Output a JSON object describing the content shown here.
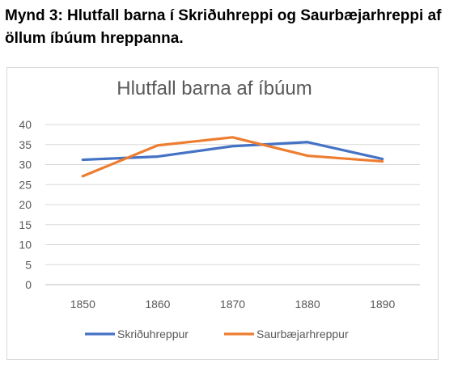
{
  "caption": "Mynd 3: Hlutfall barna í Skriðuhreppi og Saurbæjarhreppi af öllum íbúum hreppanna.",
  "chart_data": {
    "type": "line",
    "title": "Hlutfall barna af íbúum",
    "x": [
      "1850",
      "1860",
      "1870",
      "1880",
      "1890"
    ],
    "ylim": [
      0,
      40
    ],
    "yticks": [
      "0",
      "5",
      "10",
      "15",
      "20",
      "25",
      "30",
      "35",
      "40"
    ],
    "grid": true,
    "legend_position": "bottom",
    "series": [
      {
        "name": "Skriðuhreppur",
        "color": "#4472C4",
        "values": [
          31.2,
          32.0,
          34.6,
          35.6,
          31.4
        ]
      },
      {
        "name": "Saurbæjarhreppur",
        "color": "#ED7D31",
        "values": [
          27.1,
          34.8,
          36.8,
          32.2,
          30.8
        ]
      }
    ]
  }
}
